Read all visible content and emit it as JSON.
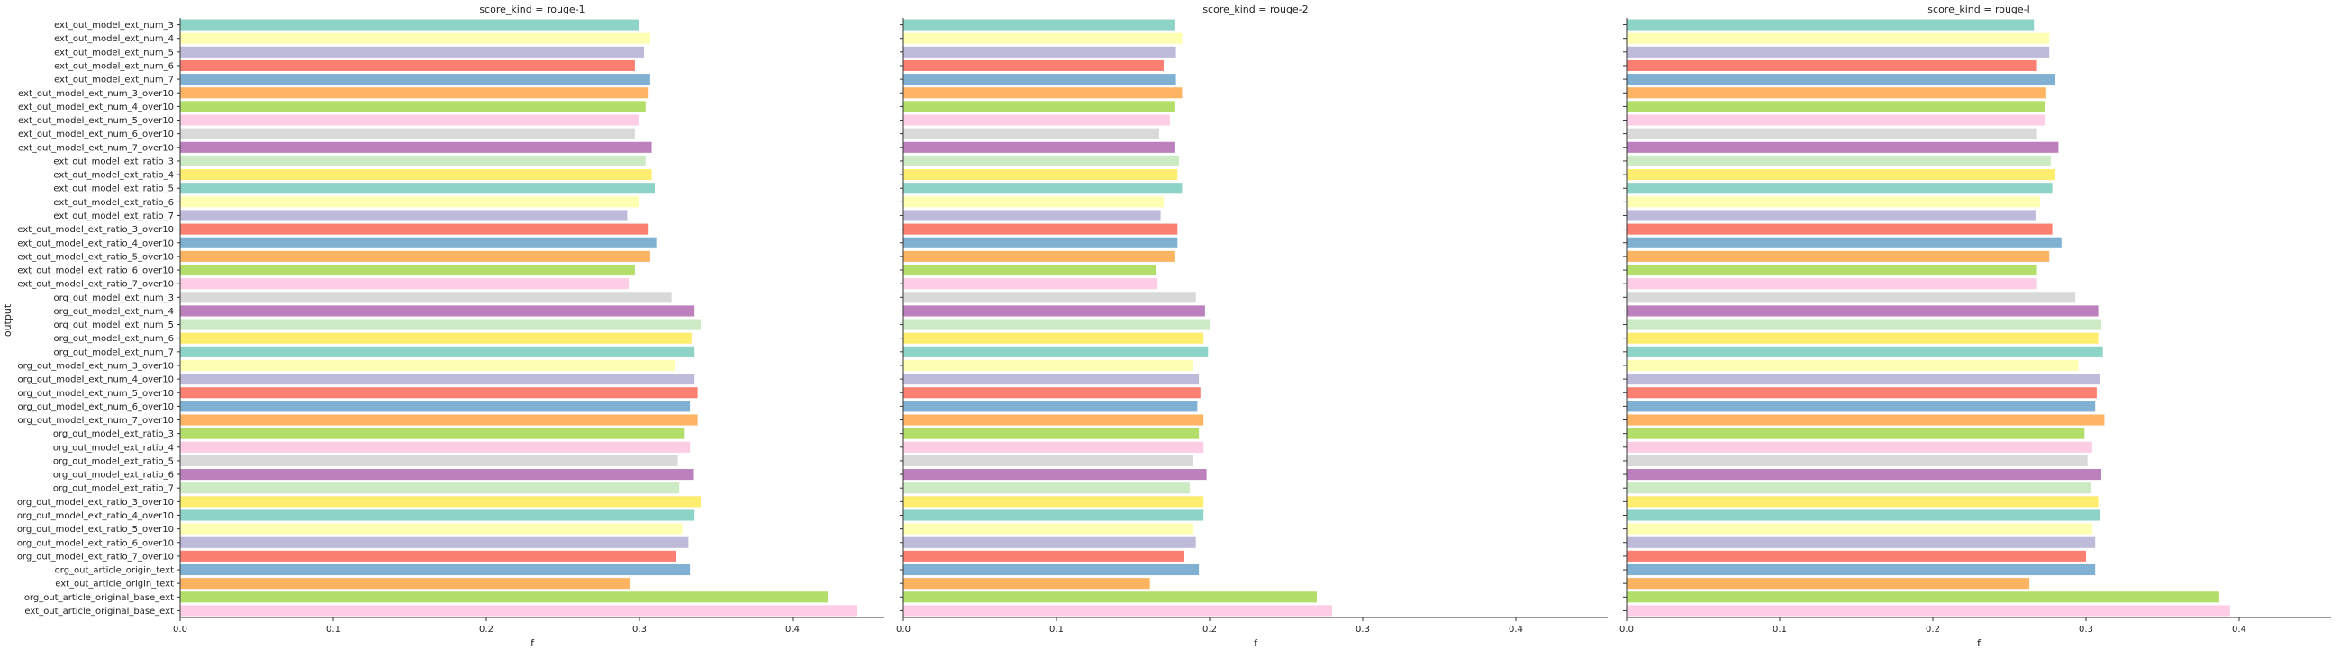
{
  "chart_data": {
    "type": "bar",
    "orientation": "horizontal",
    "ylabel": "output",
    "grid": false,
    "categories": [
      "ext_out_model_ext_num_3",
      "ext_out_model_ext_num_4",
      "ext_out_model_ext_num_5",
      "ext_out_model_ext_num_6",
      "ext_out_model_ext_num_7",
      "ext_out_model_ext_num_3_over10",
      "ext_out_model_ext_num_4_over10",
      "ext_out_model_ext_num_5_over10",
      "ext_out_model_ext_num_6_over10",
      "ext_out_model_ext_num_7_over10",
      "ext_out_model_ext_ratio_3",
      "ext_out_model_ext_ratio_4",
      "ext_out_model_ext_ratio_5",
      "ext_out_model_ext_ratio_6",
      "ext_out_model_ext_ratio_7",
      "ext_out_model_ext_ratio_3_over10",
      "ext_out_model_ext_ratio_4_over10",
      "ext_out_model_ext_ratio_5_over10",
      "ext_out_model_ext_ratio_6_over10",
      "ext_out_model_ext_ratio_7_over10",
      "org_out_model_ext_num_3",
      "org_out_model_ext_num_4",
      "org_out_model_ext_num_5",
      "org_out_model_ext_num_6",
      "org_out_model_ext_num_7",
      "org_out_model_ext_num_3_over10",
      "org_out_model_ext_num_4_over10",
      "org_out_model_ext_num_5_over10",
      "org_out_model_ext_num_6_over10",
      "org_out_model_ext_num_7_over10",
      "org_out_model_ext_ratio_3",
      "org_out_model_ext_ratio_4",
      "org_out_model_ext_ratio_5",
      "org_out_model_ext_ratio_6",
      "org_out_model_ext_ratio_7",
      "org_out_model_ext_ratio_3_over10",
      "org_out_model_ext_ratio_4_over10",
      "org_out_model_ext_ratio_5_over10",
      "org_out_model_ext_ratio_6_over10",
      "org_out_model_ext_ratio_7_over10",
      "org_out_article_origin_text",
      "ext_out_article_origin_text",
      "org_out_article_original_base_ext",
      "ext_out_article_original_base_ext"
    ],
    "colors": [
      "#8dd3c7",
      "#ffffb3",
      "#bebada",
      "#fb8072",
      "#80b1d3",
      "#fdb462",
      "#b3de69",
      "#fccde5",
      "#d9d9d9",
      "#bc80bd",
      "#ccebc5",
      "#ffed6f"
    ],
    "xlim": [
      0,
      0.46
    ],
    "xticks": [
      0.0,
      0.1,
      0.2,
      0.3,
      0.4
    ],
    "xtick_labels": [
      "0.0",
      "0.1",
      "0.2",
      "0.3",
      "0.4"
    ],
    "panels": [
      {
        "title": "score_kind = rouge-1",
        "xlabel": "f",
        "values": [
          0.3,
          0.307,
          0.303,
          0.297,
          0.307,
          0.306,
          0.304,
          0.3,
          0.297,
          0.308,
          0.304,
          0.308,
          0.31,
          0.3,
          0.292,
          0.306,
          0.311,
          0.307,
          0.297,
          0.293,
          0.321,
          0.336,
          0.34,
          0.334,
          0.336,
          0.323,
          0.336,
          0.338,
          0.333,
          0.338,
          0.329,
          0.333,
          0.325,
          0.335,
          0.326,
          0.34,
          0.336,
          0.328,
          0.332,
          0.324,
          0.333,
          0.294,
          0.423,
          0.442
        ]
      },
      {
        "title": "score_kind = rouge-2",
        "xlabel": "f",
        "values": [
          0.177,
          0.182,
          0.178,
          0.17,
          0.178,
          0.182,
          0.177,
          0.174,
          0.167,
          0.177,
          0.18,
          0.179,
          0.182,
          0.17,
          0.168,
          0.179,
          0.179,
          0.177,
          0.165,
          0.166,
          0.191,
          0.197,
          0.2,
          0.196,
          0.199,
          0.189,
          0.193,
          0.194,
          0.192,
          0.196,
          0.193,
          0.196,
          0.189,
          0.198,
          0.187,
          0.196,
          0.196,
          0.189,
          0.191,
          0.183,
          0.193,
          0.161,
          0.27,
          0.28
        ]
      },
      {
        "title": "score_kind = rouge-l",
        "xlabel": "f",
        "values": [
          0.266,
          0.276,
          0.276,
          0.268,
          0.28,
          0.274,
          0.273,
          0.273,
          0.268,
          0.282,
          0.277,
          0.28,
          0.278,
          0.27,
          0.267,
          0.278,
          0.284,
          0.276,
          0.268,
          0.268,
          0.293,
          0.308,
          0.31,
          0.308,
          0.311,
          0.295,
          0.309,
          0.307,
          0.306,
          0.312,
          0.299,
          0.304,
          0.301,
          0.31,
          0.303,
          0.308,
          0.309,
          0.304,
          0.306,
          0.3,
          0.306,
          0.263,
          0.387,
          0.394
        ]
      }
    ]
  }
}
